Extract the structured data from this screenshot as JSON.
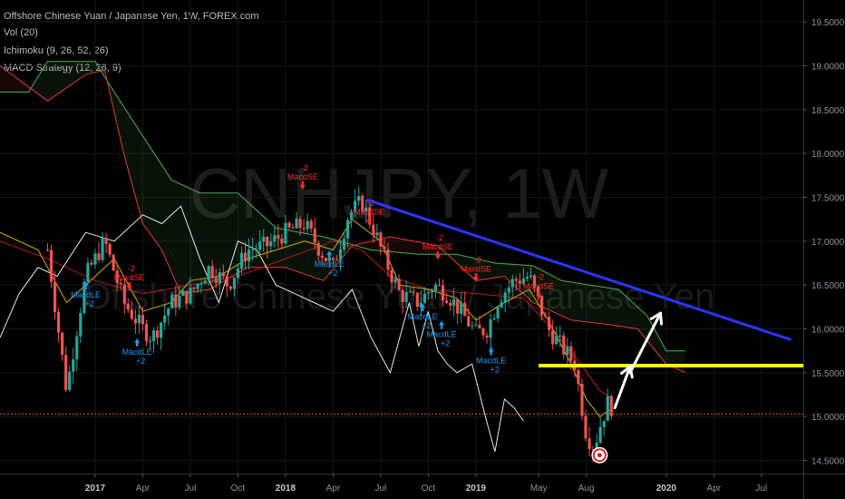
{
  "header": {
    "symbol": "Offshore Chinese Yuan / Japanese Yen, 1W, FOREX.com",
    "indicators": [
      "Vol (20)",
      "Ichimoku (9, 26, 52, 26)",
      "MACD Strategy (12, 26, 9)"
    ]
  },
  "watermark": {
    "ticker": "CNHJPY, 1W",
    "name": "Offshore Chinese Yuan / Japanese Yen"
  },
  "chart_data": {
    "type": "line",
    "title": "Offshore Chinese Yuan / Japanese Yen, 1W, FOREX.com",
    "xlabel": "",
    "ylabel": "",
    "ylim": [
      14.35,
      19.75
    ],
    "y_ticks": [
      "19.5000",
      "19.0000",
      "18.5000",
      "18.0000",
      "17.5000",
      "17.0000",
      "16.5000",
      "16.0000",
      "15.5000",
      "15.0000",
      "14.5000"
    ],
    "x_ticks": [
      {
        "label": "2017",
        "bold": true
      },
      {
        "label": "Apr"
      },
      {
        "label": "Jul"
      },
      {
        "label": "Oct"
      },
      {
        "label": "2018",
        "bold": true
      },
      {
        "label": "Apr"
      },
      {
        "label": "Jul"
      },
      {
        "label": "Oct"
      },
      {
        "label": "2019",
        "bold": true
      },
      {
        "label": "May"
      },
      {
        "label": "Aug"
      },
      {
        "label": "2020",
        "bold": true
      },
      {
        "label": "Apr"
      },
      {
        "label": "Jul"
      }
    ],
    "x_tick_time": [
      2017.0,
      2017.25,
      2017.5,
      2017.75,
      2018.0,
      2018.25,
      2018.5,
      2018.75,
      2019.0,
      2019.33,
      2019.58,
      2020.0,
      2020.25,
      2020.5
    ],
    "price_path": [
      [
        2016.75,
        16.9
      ],
      [
        2016.85,
        15.3
      ],
      [
        2016.95,
        16.6
      ],
      [
        2017.05,
        17.0
      ],
      [
        2017.15,
        16.3
      ],
      [
        2017.25,
        16.0
      ],
      [
        2017.3,
        15.9
      ],
      [
        2017.4,
        16.3
      ],
      [
        2017.5,
        16.4
      ],
      [
        2017.6,
        16.7
      ],
      [
        2017.7,
        16.5
      ],
      [
        2017.8,
        16.9
      ],
      [
        2017.9,
        16.95
      ],
      [
        2018.0,
        17.1
      ],
      [
        2018.1,
        17.2
      ],
      [
        2018.18,
        16.9
      ],
      [
        2018.25,
        16.7
      ],
      [
        2018.33,
        17.3
      ],
      [
        2018.4,
        17.45
      ],
      [
        2018.47,
        17.1
      ],
      [
        2018.52,
        16.8
      ],
      [
        2018.6,
        16.4
      ],
      [
        2018.7,
        16.3
      ],
      [
        2018.78,
        16.5
      ],
      [
        2018.85,
        16.4
      ],
      [
        2018.92,
        16.2
      ],
      [
        2019.0,
        15.95
      ],
      [
        2019.06,
        16.0
      ],
      [
        2019.12,
        16.35
      ],
      [
        2019.2,
        16.55
      ],
      [
        2019.28,
        16.6
      ],
      [
        2019.33,
        16.3
      ],
      [
        2019.38,
        16.0
      ],
      [
        2019.45,
        15.8
      ],
      [
        2019.52,
        15.6
      ],
      [
        2019.55,
        15.2
      ],
      [
        2019.58,
        14.8
      ],
      [
        2019.62,
        14.65
      ],
      [
        2019.66,
        14.95
      ],
      [
        2019.7,
        15.2
      ],
      [
        2019.72,
        15.05
      ]
    ],
    "chikou_path": [
      [
        2016.5,
        15.9
      ],
      [
        2016.6,
        16.4
      ],
      [
        2016.7,
        16.7
      ],
      [
        2016.8,
        16.6
      ],
      [
        2016.95,
        17.1
      ],
      [
        2017.1,
        17.0
      ],
      [
        2017.25,
        17.3
      ],
      [
        2017.35,
        17.2
      ],
      [
        2017.45,
        17.4
      ],
      [
        2017.55,
        16.8
      ],
      [
        2017.65,
        16.3
      ],
      [
        2017.75,
        17.0
      ],
      [
        2017.85,
        16.9
      ],
      [
        2017.95,
        16.5
      ],
      [
        2018.05,
        16.4
      ],
      [
        2018.15,
        16.3
      ],
      [
        2018.25,
        16.2
      ],
      [
        2018.35,
        16.45
      ],
      [
        2018.45,
        15.9
      ],
      [
        2018.55,
        15.5
      ],
      [
        2018.65,
        16.3
      ],
      [
        2018.7,
        15.8
      ],
      [
        2018.75,
        16.2
      ],
      [
        2018.8,
        15.75
      ],
      [
        2018.85,
        15.6
      ],
      [
        2018.9,
        15.5
      ],
      [
        2018.98,
        15.6
      ],
      [
        2019.05,
        15.0
      ],
      [
        2019.1,
        14.6
      ],
      [
        2019.15,
        15.2
      ],
      [
        2019.2,
        15.1
      ],
      [
        2019.25,
        14.95
      ]
    ],
    "series": [
      {
        "values": [
          [
            2016.5,
            18.7
          ],
          [
            2016.65,
            18.7
          ],
          [
            2016.75,
            19.05
          ],
          [
            2017.0,
            19.05
          ],
          [
            2017.1,
            18.7
          ],
          [
            2017.25,
            18.2
          ],
          [
            2017.4,
            17.7
          ],
          [
            2017.55,
            17.55
          ],
          [
            2017.75,
            17.55
          ],
          [
            2017.95,
            17.15
          ],
          [
            2018.2,
            17.05
          ],
          [
            2018.45,
            16.9
          ],
          [
            2018.7,
            16.85
          ],
          [
            2018.9,
            16.85
          ],
          [
            2019.1,
            16.75
          ],
          [
            2019.3,
            16.72
          ],
          [
            2019.45,
            16.55
          ],
          [
            2019.6,
            16.5
          ],
          [
            2019.75,
            16.45
          ],
          [
            2019.9,
            16.15
          ],
          [
            2020.0,
            15.75
          ],
          [
            2020.1,
            15.75
          ]
        ]
      },
      {
        "values": [
          [
            2016.5,
            19.0
          ],
          [
            2016.75,
            18.6
          ],
          [
            2016.95,
            18.9
          ],
          [
            2017.05,
            18.95
          ],
          [
            2017.15,
            18.0
          ],
          [
            2017.25,
            17.2
          ],
          [
            2017.35,
            16.9
          ],
          [
            2017.45,
            16.4
          ],
          [
            2017.6,
            16.45
          ],
          [
            2017.8,
            16.7
          ],
          [
            2018.0,
            16.7
          ],
          [
            2018.2,
            16.55
          ],
          [
            2018.35,
            16.95
          ],
          [
            2018.55,
            17.05
          ],
          [
            2018.8,
            16.95
          ],
          [
            2019.0,
            16.55
          ],
          [
            2019.15,
            16.6
          ],
          [
            2019.3,
            16.3
          ],
          [
            2019.5,
            16.1
          ],
          [
            2019.7,
            16.05
          ],
          [
            2019.85,
            16.0
          ],
          [
            2020.0,
            15.6
          ],
          [
            2020.1,
            15.5
          ]
        ]
      }
    ],
    "tenkan_path": [
      [
        2016.5,
        17.1
      ],
      [
        2016.7,
        16.9
      ],
      [
        2016.85,
        16.3
      ],
      [
        2016.95,
        16.5
      ],
      [
        2017.1,
        16.8
      ],
      [
        2017.25,
        16.2
      ],
      [
        2017.4,
        16.3
      ],
      [
        2017.5,
        16.55
      ],
      [
        2017.65,
        16.6
      ],
      [
        2017.8,
        16.8
      ],
      [
        2017.95,
        16.9
      ],
      [
        2018.1,
        17.0
      ],
      [
        2018.25,
        16.9
      ],
      [
        2018.35,
        17.25
      ],
      [
        2018.5,
        17.0
      ],
      [
        2018.6,
        16.5
      ],
      [
        2018.75,
        16.45
      ],
      [
        2018.9,
        16.35
      ],
      [
        2019.0,
        16.1
      ],
      [
        2019.15,
        16.3
      ],
      [
        2019.28,
        16.45
      ],
      [
        2019.38,
        16.1
      ],
      [
        2019.5,
        15.6
      ],
      [
        2019.58,
        15.2
      ],
      [
        2019.65,
        15.0
      ],
      [
        2019.72,
        15.1
      ]
    ],
    "kijun_path": [
      [
        2016.5,
        17.0
      ],
      [
        2016.75,
        16.8
      ],
      [
        2017.0,
        16.55
      ],
      [
        2017.25,
        16.4
      ],
      [
        2017.5,
        16.5
      ],
      [
        2017.75,
        16.6
      ],
      [
        2018.0,
        16.8
      ],
      [
        2018.25,
        17.0
      ],
      [
        2018.4,
        16.9
      ],
      [
        2018.55,
        16.6
      ],
      [
        2018.75,
        16.45
      ],
      [
        2019.0,
        16.4
      ],
      [
        2019.25,
        16.35
      ],
      [
        2019.4,
        16.0
      ],
      [
        2019.55,
        15.6
      ],
      [
        2019.65,
        15.3
      ],
      [
        2019.72,
        15.2
      ]
    ],
    "signals": [
      {
        "text": "MacdLE",
        "qty": "+2",
        "dir": "long",
        "t": 2016.95,
        "p": 16.45
      },
      {
        "text": "MacdSE",
        "qty": "-2",
        "dir": "short",
        "t": 2017.18,
        "p": 16.45
      },
      {
        "text": "MacdLE",
        "qty": "+2",
        "dir": "long",
        "t": 2017.22,
        "p": 15.8
      },
      {
        "text": "MacdSE",
        "qty": "-2",
        "dir": "short",
        "t": 2018.09,
        "p": 17.6
      },
      {
        "text": "MacdLE",
        "qty": "+2",
        "dir": "long",
        "t": 2018.23,
        "p": 16.8
      },
      {
        "text": "MacdSE",
        "qty": "-2",
        "dir": "short",
        "t": 2018.44,
        "p": 17.2
      },
      {
        "text": "MacdSE",
        "qty": "-2",
        "dir": "short",
        "t": 2018.8,
        "p": 16.8
      },
      {
        "text": "MacdLE",
        "qty": "+2",
        "dir": "long",
        "t": 2018.72,
        "p": 16.2
      },
      {
        "text": "MacdLE",
        "qty": "+2",
        "dir": "long",
        "t": 2018.82,
        "p": 16.0
      },
      {
        "text": "MacdSE",
        "qty": "-2",
        "dir": "short",
        "t": 2019.0,
        "p": 16.55
      },
      {
        "text": "MacdLE",
        "qty": "+2",
        "dir": "long",
        "t": 2019.08,
        "p": 15.7
      },
      {
        "text": "MacdSE",
        "qty": "-2",
        "dir": "short",
        "t": 2019.33,
        "p": 16.35
      }
    ],
    "trendline": {
      "from": [
        2018.43,
        17.47
      ],
      "to": [
        2020.65,
        15.88
      ],
      "color": "#2b35ff"
    },
    "support": {
      "value": "15.5810",
      "from_t": 2019.33,
      "color": "#ffff00"
    },
    "current_price": {
      "value": "15.0304",
      "color": "#e05555"
    },
    "arrows": [
      {
        "from": [
          2019.73,
          15.1
        ],
        "to": [
          2019.81,
          15.57
        ]
      },
      {
        "from": [
          2019.81,
          15.5
        ],
        "to": [
          2019.97,
          16.18
        ]
      }
    ],
    "marker_t": 2019.65,
    "marker_p": 14.56
  },
  "colors": {
    "background": "#000000",
    "candle_up": "#26a69a",
    "candle_down": "#ef5350",
    "chikou": "#e8e8e8",
    "senkou_a": "#4caf50",
    "senkou_b": "#e53935",
    "tenkan": "#d4b000",
    "kijun": "#b71c1c",
    "long_signal": "#2196f3",
    "short_signal": "#ff2b2b"
  }
}
